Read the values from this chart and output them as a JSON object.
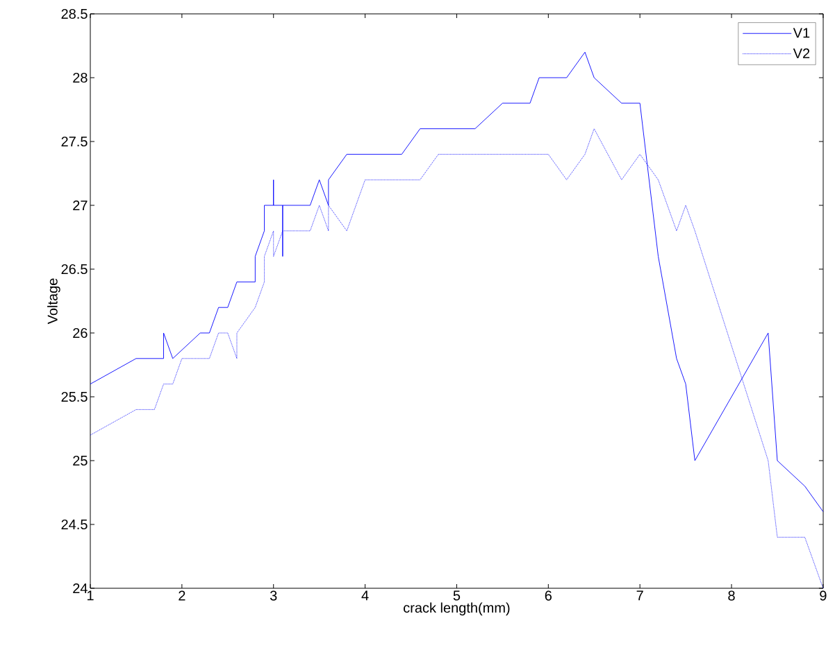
{
  "chart_data": {
    "type": "line",
    "xlabel": "crack length(mm)",
    "ylabel": "Voltage",
    "xlim": [
      1,
      9
    ],
    "ylim": [
      24,
      28.5
    ],
    "xticks": [
      1,
      2,
      3,
      4,
      5,
      6,
      7,
      8,
      9
    ],
    "yticks": [
      24,
      24.5,
      25,
      25.5,
      26,
      26.5,
      27,
      27.5,
      28,
      28.5
    ],
    "grid": false,
    "legend": "top right",
    "marker": "none",
    "series": [
      {
        "name": "V1",
        "color": "#0000ff",
        "line_style": "solid",
        "x": [
          1,
          1.5,
          1.8,
          1.8,
          1.9,
          2.2,
          2.3,
          2.4,
          2.5,
          2.6,
          2.8,
          2.8,
          2.9,
          2.9,
          3.0,
          3.0,
          3.0,
          3.1,
          3.1,
          3.1,
          3.4,
          3.5,
          3.6,
          3.6,
          3.8,
          4.4,
          4.6,
          5.2,
          5.5,
          5.8,
          5.9,
          6.2,
          6.4,
          6.5,
          6.8,
          7.0,
          7.2,
          7.4,
          7.5,
          7.6,
          8.4,
          8.5,
          8.8,
          9.0
        ],
        "values": [
          25.6,
          25.8,
          25.8,
          26.0,
          25.8,
          26.0,
          26.0,
          26.2,
          26.2,
          26.4,
          26.4,
          26.6,
          26.8,
          27.0,
          27.0,
          27.2,
          27.0,
          27.0,
          26.6,
          27.0,
          27.0,
          27.2,
          27.0,
          27.2,
          27.4,
          27.4,
          27.6,
          27.6,
          27.8,
          27.8,
          28.0,
          28.0,
          28.2,
          28.0,
          27.8,
          27.8,
          26.6,
          25.8,
          25.6,
          25.0,
          26.0,
          25.0,
          24.8,
          24.6
        ]
      },
      {
        "name": "V2",
        "color": "#0000ff",
        "line_style": "dotted",
        "x": [
          1,
          1.5,
          1.7,
          1.8,
          1.9,
          2.0,
          2.3,
          2.4,
          2.5,
          2.6,
          2.6,
          2.8,
          2.9,
          2.9,
          3.0,
          3.0,
          3.1,
          3.4,
          3.5,
          3.6,
          3.6,
          3.8,
          3.9,
          4.0,
          4.6,
          4.8,
          6.0,
          6.2,
          6.4,
          6.5,
          6.8,
          7.0,
          7.2,
          7.4,
          7.5,
          7.6,
          8.4,
          8.5,
          8.8,
          9.0
        ],
        "values": [
          25.2,
          25.4,
          25.4,
          25.6,
          25.6,
          25.8,
          25.8,
          26.0,
          26.0,
          25.8,
          26.0,
          26.2,
          26.4,
          26.6,
          26.8,
          26.6,
          26.8,
          26.8,
          27.0,
          26.8,
          27.0,
          26.8,
          27.0,
          27.2,
          27.2,
          27.4,
          27.4,
          27.2,
          27.4,
          27.6,
          27.2,
          27.4,
          27.2,
          26.8,
          27.0,
          26.8,
          25.0,
          24.4,
          24.4,
          24.0
        ]
      }
    ]
  }
}
